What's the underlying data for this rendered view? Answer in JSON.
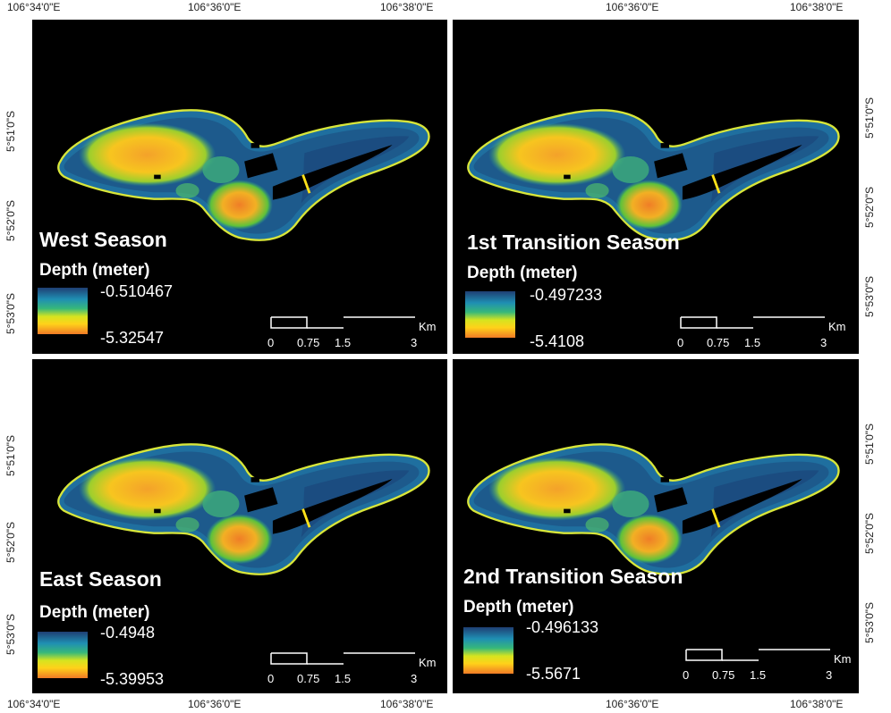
{
  "coords": {
    "top_ticks": [
      "106°34'0\"E",
      "106°36'0\"E",
      "106°38'0\"E",
      "106°36'0\"E",
      "106°38'0\"E"
    ],
    "bottom_ticks": [
      "106°34'0\"E",
      "106°36'0\"E",
      "106°38'0\"E",
      "106°36'0\"E",
      "106°38'0\"E"
    ],
    "left_ticks": [
      "5°51'0\"S",
      "5°52'0\"S",
      "5°53'0\"S",
      "5°51'0\"S",
      "5°52'0\"S",
      "5°53'0\"S"
    ],
    "right_ticks": [
      "5°51'0\"S",
      "5°52'0\"S",
      "5°53'0\"S",
      "5°51'0\"S",
      "5°52'0\"S",
      "5°53'0\"S"
    ]
  },
  "panels": [
    {
      "season": "West Season",
      "legend_title": "Depth (meter)",
      "max": "-0.510467",
      "min": "-5.32547"
    },
    {
      "season": "1st Transition Season",
      "legend_title": "Depth (meter)",
      "max": "-0.497233",
      "min": "-5.4108"
    },
    {
      "season": "East Season",
      "legend_title": "Depth (meter)",
      "max": "-0.4948",
      "min": "-5.39953"
    },
    {
      "season": "2nd Transition Season",
      "legend_title": "Depth (meter)",
      "max": "-0.496133",
      "min": "-5.5671"
    }
  ],
  "scalebar": {
    "ticks": [
      "0",
      "0.75",
      "1.5",
      "3"
    ],
    "unit": "Km"
  },
  "colors": {
    "background": "#000000",
    "deep": "#1f3f73",
    "mid": "#1f7fae",
    "teal": "#2fa58a",
    "green": "#55c13a",
    "yellow": "#ffe21a",
    "orange": "#f28a25"
  }
}
